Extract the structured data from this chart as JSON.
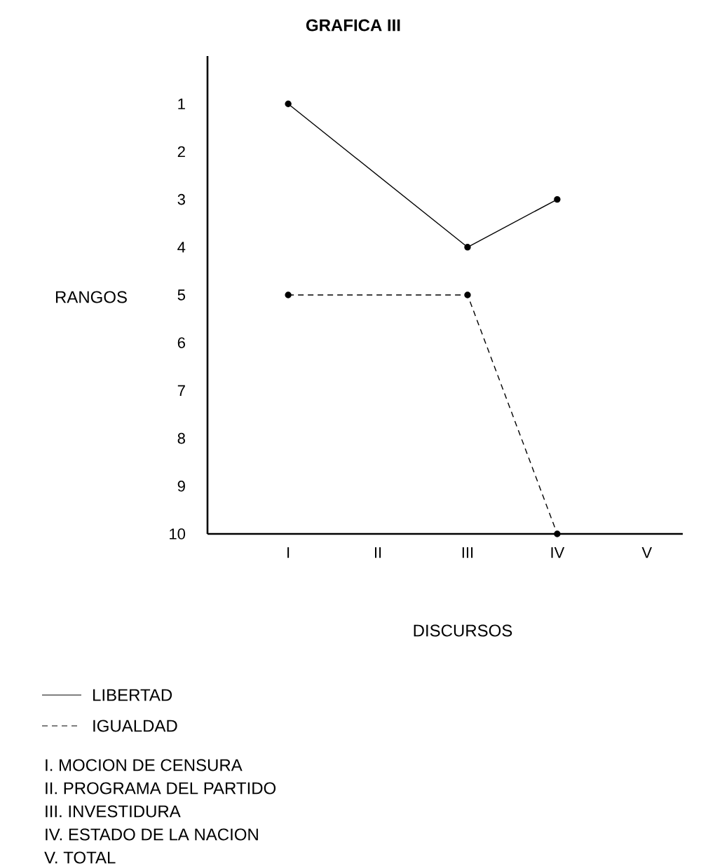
{
  "chart_data": {
    "type": "line",
    "title": "GRAFICA III",
    "xlabel": "DISCURSOS",
    "ylabel": "RANGOS",
    "categories": [
      "I",
      "II",
      "III",
      "IV",
      "V"
    ],
    "series": [
      {
        "name": "LIBERTAD",
        "color": "#000000",
        "line_style": "solid",
        "values": [
          1,
          null,
          4,
          3,
          null
        ]
      },
      {
        "name": "IGUALDAD",
        "color": "#000000",
        "line_style": "dashed",
        "values": [
          5,
          null,
          5,
          10,
          null
        ]
      }
    ],
    "ylim": [
      10,
      0
    ],
    "yticks": [
      1,
      2,
      3,
      4,
      5,
      6,
      7,
      8,
      9,
      10
    ],
    "marker": "circle",
    "legend": "bottom",
    "grid": false,
    "annotations": [
      "I.   MOCION DE CENSURA",
      "II.  PROGRAMA DEL PARTIDO",
      "III. INVESTIDURA",
      "IV. ESTADO DE LA NACION",
      "V.  TOTAL"
    ]
  }
}
